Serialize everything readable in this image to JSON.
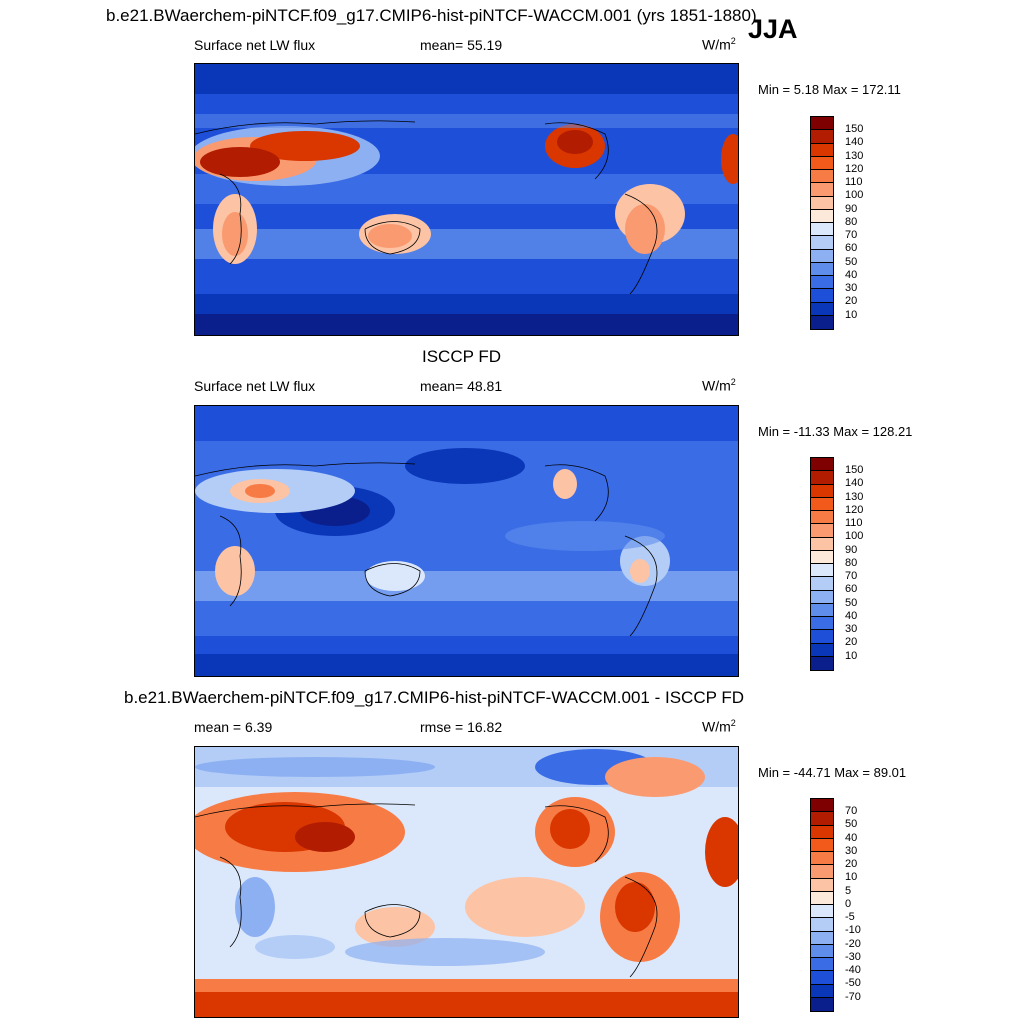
{
  "season": "JJA",
  "panels": [
    {
      "title": "b.e21.BWaerchem-piNTCF.f09_g17.CMIP6-hist-piNTCF-WACCM.001 (yrs 1851-1880)",
      "left_label": "Surface net LW flux",
      "center_label": "mean=  55.19",
      "units": "W/m",
      "units_sup": "2",
      "minmax": "Min =   5.18 Max = 172.11",
      "colorbar_ticks": [
        "150",
        "140",
        "130",
        "120",
        "110",
        "100",
        "90",
        "80",
        "70",
        "60",
        "50",
        "40",
        "30",
        "20",
        "10"
      ]
    },
    {
      "title": "ISCCP FD",
      "left_label": "Surface net LW flux",
      "center_label": "mean=  48.81",
      "units": "W/m",
      "units_sup": "2",
      "minmax": "Min = -11.33 Max = 128.21",
      "colorbar_ticks": [
        "150",
        "140",
        "130",
        "120",
        "110",
        "100",
        "90",
        "80",
        "70",
        "60",
        "50",
        "40",
        "30",
        "20",
        "10"
      ]
    },
    {
      "title": "b.e21.BWaerchem-piNTCF.f09_g17.CMIP6-hist-piNTCF-WACCM.001 - ISCCP FD",
      "left_label": "mean =   6.39",
      "center_label": "rmse =  16.82",
      "units": "W/m",
      "units_sup": "2",
      "minmax": "Min = -44.71 Max =  89.01",
      "colorbar_ticks": [
        "70",
        "50",
        "40",
        "30",
        "20",
        "10",
        "5",
        "0",
        "-5",
        "-10",
        "-20",
        "-30",
        "-40",
        "-50",
        "-70"
      ]
    }
  ],
  "colors": {
    "abs_scale": [
      "#7f0000",
      "#b21c00",
      "#d93600",
      "#f25a1c",
      "#f77b45",
      "#fa9a70",
      "#fcc3a5",
      "#fde9d9",
      "#dbe8fb",
      "#b3cdf7",
      "#8db0f2",
      "#5f8deb",
      "#3a6ce6",
      "#1d4fd8",
      "#0a36b8",
      "#0a1f8c"
    ],
    "diff_scale": [
      "#7f0000",
      "#b21c00",
      "#d93600",
      "#f25a1c",
      "#f77b45",
      "#fa9a70",
      "#fcc3a5",
      "#fde9d9",
      "#ffffff",
      "#dbe8fb",
      "#b3cdf7",
      "#8db0f2",
      "#5f8deb",
      "#3a6ce6",
      "#1d4fd8",
      "#0a36b8",
      "#0a1f8c"
    ]
  }
}
